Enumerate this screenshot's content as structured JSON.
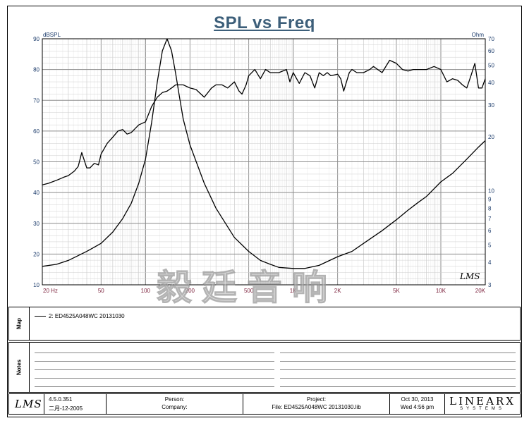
{
  "title": "SPL vs Freq",
  "chart_data": {
    "type": "line",
    "title": "SPL vs Freq",
    "xlabel": "",
    "ylabel": "dBSPL",
    "ylabel_right": "Ohm",
    "x_scale": "log",
    "xlim": [
      20,
      20000
    ],
    "ylim": [
      10,
      90
    ],
    "ylim_right": [
      3,
      70
    ],
    "right_scale": "log",
    "grid": true,
    "x_ticks": [
      {
        "v": 20,
        "label": "20 Hz"
      },
      {
        "v": 50,
        "label": "50"
      },
      {
        "v": 100,
        "label": "100"
      },
      {
        "v": 200,
        "label": "200"
      },
      {
        "v": 500,
        "label": "500"
      },
      {
        "v": 1000,
        "label": "1K"
      },
      {
        "v": 2000,
        "label": "2K"
      },
      {
        "v": 5000,
        "label": "5K"
      },
      {
        "v": 10000,
        "label": "10K"
      },
      {
        "v": 20000,
        "label": "20K"
      }
    ],
    "y_ticks": [
      10,
      20,
      30,
      40,
      50,
      60,
      70,
      80,
      90
    ],
    "y_ticks_right": [
      3,
      4,
      5,
      6,
      7,
      8,
      9,
      10,
      20,
      30,
      40,
      50,
      60,
      70
    ],
    "series": [
      {
        "name": "SPL",
        "axis": "left",
        "x": [
          20,
          22,
          25,
          28,
          30,
          33,
          35,
          37,
          40,
          42,
          45,
          48,
          50,
          55,
          60,
          65,
          70,
          75,
          80,
          90,
          100,
          110,
          120,
          130,
          140,
          150,
          160,
          180,
          200,
          220,
          250,
          280,
          300,
          330,
          360,
          400,
          430,
          450,
          480,
          500,
          550,
          600,
          650,
          700,
          800,
          900,
          950,
          1000,
          1100,
          1200,
          1300,
          1400,
          1500,
          1600,
          1700,
          1800,
          2000,
          2100,
          2200,
          2400,
          2500,
          2700,
          3000,
          3300,
          3500,
          4000,
          4500,
          5000,
          5500,
          6000,
          6500,
          7000,
          8000,
          9000,
          10000,
          11000,
          12000,
          13000,
          14000,
          15000,
          16000,
          17000,
          18000,
          19000,
          20000
        ],
        "y": [
          42.5,
          43,
          44,
          45,
          45.5,
          47,
          48.5,
          53,
          48,
          48,
          49.5,
          49,
          52.5,
          56,
          58,
          60,
          60.5,
          59,
          59.5,
          62,
          63,
          68,
          71,
          72.5,
          73,
          74,
          75,
          75,
          74,
          73.5,
          71,
          74,
          75,
          75,
          74,
          76,
          73,
          72,
          75,
          78,
          80,
          77,
          80,
          79,
          79,
          80,
          76,
          79,
          75.5,
          79,
          78,
          74,
          79,
          78,
          79,
          78,
          78.5,
          77,
          73,
          79,
          80,
          79,
          79,
          80,
          81,
          79,
          83,
          82,
          80,
          79.5,
          80,
          80,
          80,
          81,
          80,
          76,
          77,
          76.5,
          75,
          74,
          78,
          82,
          74,
          74,
          77
        ]
      },
      {
        "name": "Impedance",
        "axis": "right",
        "x": [
          20,
          25,
          30,
          40,
          50,
          60,
          70,
          80,
          90,
          100,
          110,
          120,
          130,
          140,
          150,
          160,
          170,
          180,
          200,
          250,
          300,
          400,
          500,
          600,
          700,
          800,
          1000,
          1200,
          1500,
          2000,
          2500,
          3000,
          4000,
          5000,
          6000,
          7000,
          8000,
          10000,
          12000,
          15000,
          18000,
          20000
        ],
        "y": [
          3.8,
          3.9,
          4.1,
          4.6,
          5.1,
          5.9,
          7,
          8.5,
          11,
          15,
          24,
          40,
          60,
          70,
          60,
          45,
          33,
          25,
          18,
          11,
          8,
          5.5,
          4.6,
          4.1,
          3.9,
          3.75,
          3.7,
          3.7,
          3.85,
          4.3,
          4.6,
          5.1,
          6,
          6.9,
          7.8,
          8.6,
          9.3,
          11.2,
          12.5,
          15,
          17.5,
          19
        ]
      }
    ],
    "logo_text": "LMS"
  },
  "watermark": "毅廷音响",
  "map": {
    "label": "Map",
    "entries": [
      {
        "text": "2: ED4525A048WC   20131030"
      }
    ]
  },
  "notes": {
    "label": "Notes"
  },
  "footer": {
    "logo": "LMS",
    "version": "4.5.0.351",
    "version_date": "二月-12-2005",
    "person_label": "Person:",
    "company_label": "Company:",
    "project_label": "Project:",
    "file_label": "File: ED4525A048WC  20131030.lib",
    "date": "Oct 30, 2013",
    "time": "Wed  4:56 pm",
    "brand_main": "LINEARX",
    "brand_sub": "SYSTEMS"
  }
}
